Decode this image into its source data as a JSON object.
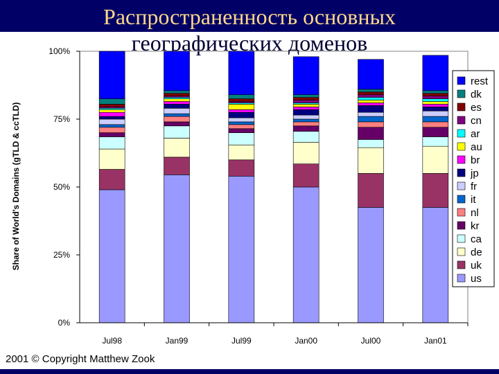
{
  "slide": {
    "title_line1": "Распространенность основных",
    "title_line2": "географических доменов",
    "copyright": "2001 © Copyright Matthew Zook"
  },
  "chart_data": {
    "type": "bar",
    "stacked": true,
    "percent": true,
    "ylabel": "Share of World's Domains (gTLD & ccTLD)",
    "ylim": [
      0,
      100
    ],
    "yticks": [
      "0%",
      "25%",
      "50%",
      "75%",
      "100%"
    ],
    "categories": [
      "Jul98",
      "Jan99",
      "Jul99",
      "Jan00",
      "Jul00",
      "Jan01"
    ],
    "legend_position": "right",
    "series": [
      {
        "name": "us",
        "color": "#9999ff",
        "values": [
          49,
          54.5,
          54,
          50,
          42.5,
          42.5
        ]
      },
      {
        "name": "uk",
        "color": "#993366",
        "values": [
          7.5,
          6.5,
          6,
          8.5,
          12.5,
          12.5
        ]
      },
      {
        "name": "de",
        "color": "#ffffcc",
        "values": [
          7.5,
          7,
          5.5,
          8,
          9.5,
          10
        ]
      },
      {
        "name": "ca",
        "color": "#ccffff",
        "values": [
          4.5,
          4.5,
          4.5,
          4,
          3,
          3.5
        ]
      },
      {
        "name": "kr",
        "color": "#660066",
        "values": [
          1.5,
          1.5,
          1.5,
          2,
          4.5,
          3.5
        ]
      },
      {
        "name": "nl",
        "color": "#ff8080",
        "values": [
          2,
          2,
          1.5,
          1.5,
          2,
          2
        ]
      },
      {
        "name": "it",
        "color": "#0066cc",
        "values": [
          1,
          1,
          1,
          1,
          2,
          2
        ]
      },
      {
        "name": "fr",
        "color": "#ccccff",
        "values": [
          2,
          2,
          1.5,
          1.5,
          1.5,
          2
        ]
      },
      {
        "name": "jp",
        "color": "#000080",
        "values": [
          1,
          1.5,
          2,
          2,
          2.5,
          1.5
        ]
      },
      {
        "name": "br",
        "color": "#ff00ff",
        "values": [
          1.5,
          1,
          1,
          1,
          1,
          1
        ]
      },
      {
        "name": "au",
        "color": "#ffff00",
        "values": [
          1,
          1,
          2,
          1,
          1,
          1
        ]
      },
      {
        "name": "ar",
        "color": "#00ffff",
        "values": [
          0.5,
          0.5,
          0.5,
          0.5,
          1,
          1
        ]
      },
      {
        "name": "cn",
        "color": "#800080",
        "values": [
          0.5,
          0.5,
          0.5,
          1,
          1,
          1
        ]
      },
      {
        "name": "es",
        "color": "#800000",
        "values": [
          1,
          1,
          1,
          1,
          1,
          1
        ]
      },
      {
        "name": "dk",
        "color": "#008080",
        "values": [
          2,
          1,
          1.5,
          1,
          1,
          1
        ]
      },
      {
        "name": "rest",
        "color": "#0000ff",
        "values": [
          17.5,
          14.5,
          16,
          14,
          11,
          13
        ]
      }
    ]
  }
}
